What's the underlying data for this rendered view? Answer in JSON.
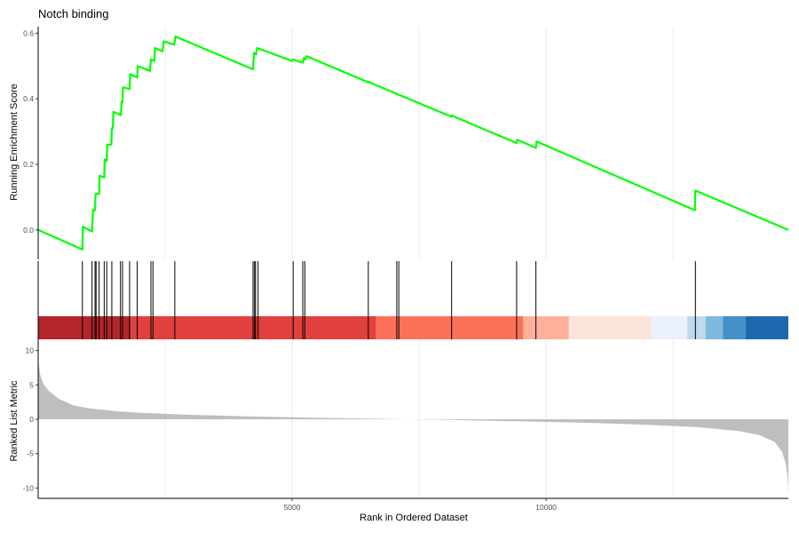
{
  "chart_data": {
    "type": "gsea",
    "title": "Notch binding",
    "xlabel": "Rank in Ordered Dataset",
    "xlim": [
      0,
      14770
    ],
    "x_ticks": [
      5000,
      10000
    ],
    "x_tick_labels": [
      "5000",
      "10000"
    ],
    "grid": "vertical major and minor lines",
    "running_score": {
      "ylabel": "Running Enrichment Score",
      "ylim": [
        -0.09,
        0.62
      ],
      "y_ticks": [
        0.0,
        0.2,
        0.4,
        0.6
      ],
      "y_tick_labels": [
        "0.0",
        "0.2",
        "0.4",
        "0.6"
      ],
      "color": "#00ff00",
      "points": [
        [
          0,
          0.0
        ],
        [
          870,
          -0.06
        ],
        [
          880,
          0.01
        ],
        [
          1060,
          -0.005
        ],
        [
          1080,
          0.06
        ],
        [
          1120,
          0.06
        ],
        [
          1130,
          0.11
        ],
        [
          1200,
          0.11
        ],
        [
          1210,
          0.165
        ],
        [
          1300,
          0.16
        ],
        [
          1310,
          0.215
        ],
        [
          1350,
          0.21
        ],
        [
          1360,
          0.26
        ],
        [
          1440,
          0.26
        ],
        [
          1450,
          0.31
        ],
        [
          1470,
          0.31
        ],
        [
          1480,
          0.36
        ],
        [
          1630,
          0.35
        ],
        [
          1640,
          0.39
        ],
        [
          1660,
          0.39
        ],
        [
          1670,
          0.435
        ],
        [
          1800,
          0.43
        ],
        [
          1810,
          0.475
        ],
        [
          1950,
          0.465
        ],
        [
          1960,
          0.5
        ],
        [
          2200,
          0.485
        ],
        [
          2220,
          0.52
        ],
        [
          2290,
          0.515
        ],
        [
          2300,
          0.555
        ],
        [
          2450,
          0.545
        ],
        [
          2470,
          0.575
        ],
        [
          2680,
          0.565
        ],
        [
          2700,
          0.59
        ],
        [
          4230,
          0.49
        ],
        [
          4250,
          0.54
        ],
        [
          4290,
          0.535
        ],
        [
          4310,
          0.555
        ],
        [
          5000,
          0.515
        ],
        [
          5020,
          0.52
        ],
        [
          5210,
          0.51
        ],
        [
          5230,
          0.525
        ],
        [
          5260,
          0.52
        ],
        [
          5280,
          0.53
        ],
        [
          6500,
          0.45
        ],
        [
          6510,
          0.452
        ],
        [
          6600,
          0.445
        ],
        [
          8140,
          0.345
        ],
        [
          8150,
          0.35
        ],
        [
          8200,
          0.345
        ],
        [
          9420,
          0.265
        ],
        [
          9430,
          0.275
        ],
        [
          9800,
          0.25
        ],
        [
          9810,
          0.27
        ],
        [
          12930,
          0.06
        ],
        [
          12940,
          0.12
        ],
        [
          14770,
          0.0
        ]
      ]
    },
    "hits": [
      870,
      1060,
      1120,
      1140,
      1200,
      1300,
      1350,
      1450,
      1620,
      1660,
      1800,
      1950,
      2220,
      2260,
      2690,
      4230,
      4260,
      4280,
      4330,
      5020,
      5210,
      5250,
      6500,
      7060,
      7100,
      8140,
      9420,
      9800,
      12940
    ],
    "color_bar": [
      {
        "from": 0,
        "to": 1820,
        "color": "#b2252b"
      },
      {
        "from": 1820,
        "to": 6650,
        "color": "#e0413e"
      },
      {
        "from": 6650,
        "to": 9550,
        "color": "#fb7158"
      },
      {
        "from": 9550,
        "to": 10450,
        "color": "#fdb19a"
      },
      {
        "from": 10450,
        "to": 12070,
        "color": "#fde4da"
      },
      {
        "from": 12070,
        "to": 12780,
        "color": "#eaf1fa"
      },
      {
        "from": 12780,
        "to": 13140,
        "color": "#c1d9ec"
      },
      {
        "from": 13140,
        "to": 13480,
        "color": "#7fb8dd"
      },
      {
        "from": 13480,
        "to": 13930,
        "color": "#4591c7"
      },
      {
        "from": 13930,
        "to": 14770,
        "color": "#2068ad"
      }
    ],
    "ranked_metric": {
      "ylabel": "Ranked List Metric",
      "ylim": [
        -11.5,
        11.5
      ],
      "y_ticks": [
        10,
        5,
        0,
        -5,
        -10
      ],
      "y_tick_labels": [
        "10",
        "5",
        "0",
        "-5",
        "-10"
      ],
      "color": "#bebebe",
      "points": [
        [
          0,
          11
        ],
        [
          10,
          8
        ],
        [
          40,
          6.5
        ],
        [
          100,
          5.2
        ],
        [
          200,
          4.2
        ],
        [
          400,
          3
        ],
        [
          700,
          2
        ],
        [
          1000,
          1.6
        ],
        [
          1500,
          1.2
        ],
        [
          2000,
          0.95
        ],
        [
          3000,
          0.65
        ],
        [
          4000,
          0.45
        ],
        [
          5000,
          0.3
        ],
        [
          6000,
          0.15
        ],
        [
          7000,
          0.03
        ],
        [
          7600,
          -0.02
        ],
        [
          8000,
          -0.08
        ],
        [
          9000,
          -0.22
        ],
        [
          10000,
          -0.38
        ],
        [
          11000,
          -0.55
        ],
        [
          12000,
          -0.8
        ],
        [
          13000,
          -1.15
        ],
        [
          13800,
          -1.7
        ],
        [
          14200,
          -2.3
        ],
        [
          14500,
          -3.3
        ],
        [
          14650,
          -4.8
        ],
        [
          14720,
          -6.5
        ],
        [
          14755,
          -8.5
        ],
        [
          14770,
          -10.8
        ]
      ]
    }
  }
}
